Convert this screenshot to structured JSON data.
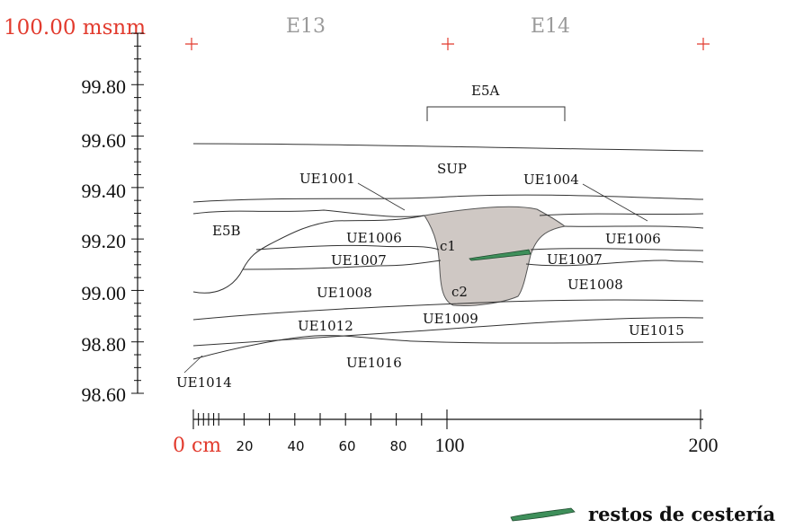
{
  "elevation_axis": {
    "datum_label": "100.00 msnm",
    "ticks": [
      "99.80",
      "99.60",
      "99.40",
      "99.20",
      "99.00",
      "98.80",
      "98.60"
    ]
  },
  "distance_axis": {
    "origin_label": "0 cm",
    "small_ticks": [
      "20",
      "40",
      "60",
      "80"
    ],
    "large_ticks": [
      "100",
      "200"
    ]
  },
  "grid_squares": [
    "E13",
    "E14"
  ],
  "feature_label": "E5A",
  "layers": {
    "sup": "SUP",
    "ue1001": "UE1001",
    "ue1004": "UE1004",
    "e5b": "E5B",
    "ue1006_left": "UE1006",
    "ue1006_right": "UE1006",
    "ue1007_left": "UE1007",
    "ue1007_right": "UE1007",
    "ue1008_left": "UE1008",
    "ue1008_right": "UE1008",
    "ue1009": "UE1009",
    "ue1012": "UE1012",
    "ue1015": "UE1015",
    "ue1016": "UE1016",
    "ue1014": "UE1014",
    "c1": "c1",
    "c2": "c2"
  },
  "legend": {
    "label": "restos de cestería",
    "color": "#3e8f5a"
  },
  "colors": {
    "datum": "#e23b2e",
    "grid_label": "#9a9a9a",
    "pit_fill": "#cfc8c4"
  }
}
